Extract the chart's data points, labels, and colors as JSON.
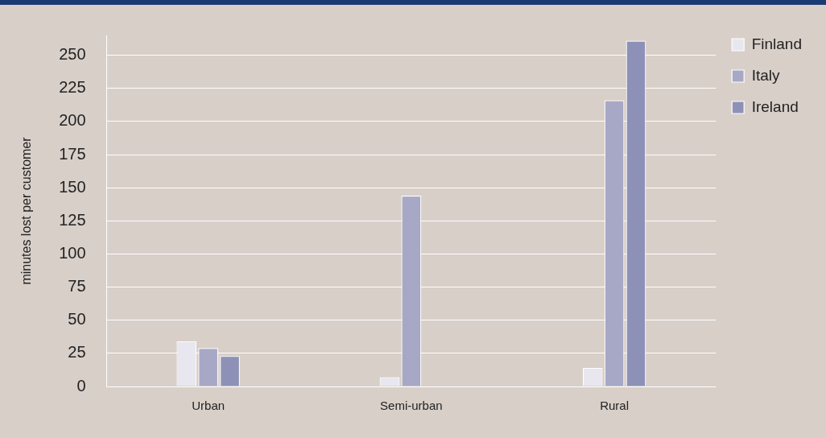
{
  "chart_data": {
    "type": "bar",
    "ylabel": "minutes lost per customer",
    "categories": [
      "Urban",
      "Semi-urban",
      "Rural"
    ],
    "series": [
      {
        "name": "Finland",
        "color": "#e8e6ee",
        "values": [
          34,
          7,
          14
        ]
      },
      {
        "name": "Italy",
        "color": "#a7a8c5",
        "values": [
          29,
          144,
          216
        ]
      },
      {
        "name": "Ireland",
        "color": "#8e91b7",
        "values": [
          23,
          null,
          261
        ]
      }
    ],
    "ylim": [
      0,
      265
    ],
    "yticks": [
      0,
      25,
      50,
      75,
      100,
      125,
      150,
      175,
      200,
      225,
      250
    ],
    "grid": "y",
    "legend": "top right"
  }
}
